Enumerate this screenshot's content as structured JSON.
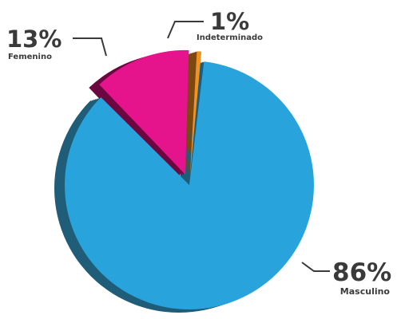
{
  "chart_data": {
    "type": "pie",
    "title": "",
    "categories": [
      "Masculino",
      "Femenino",
      "Indeterminado"
    ],
    "values": [
      86,
      13,
      1
    ],
    "labels": [
      "86%",
      "13%",
      "1%"
    ],
    "colors": {
      "Masculino": "#29A3DB",
      "Femenino": "#E5148C",
      "Indeterminado": "#F29222"
    },
    "side_colors": {
      "Masculino": "#1F5D78",
      "Femenino": "#6B0840",
      "Indeterminado": "#7A4810"
    },
    "style": "3d-exploded",
    "legend": "none"
  }
}
